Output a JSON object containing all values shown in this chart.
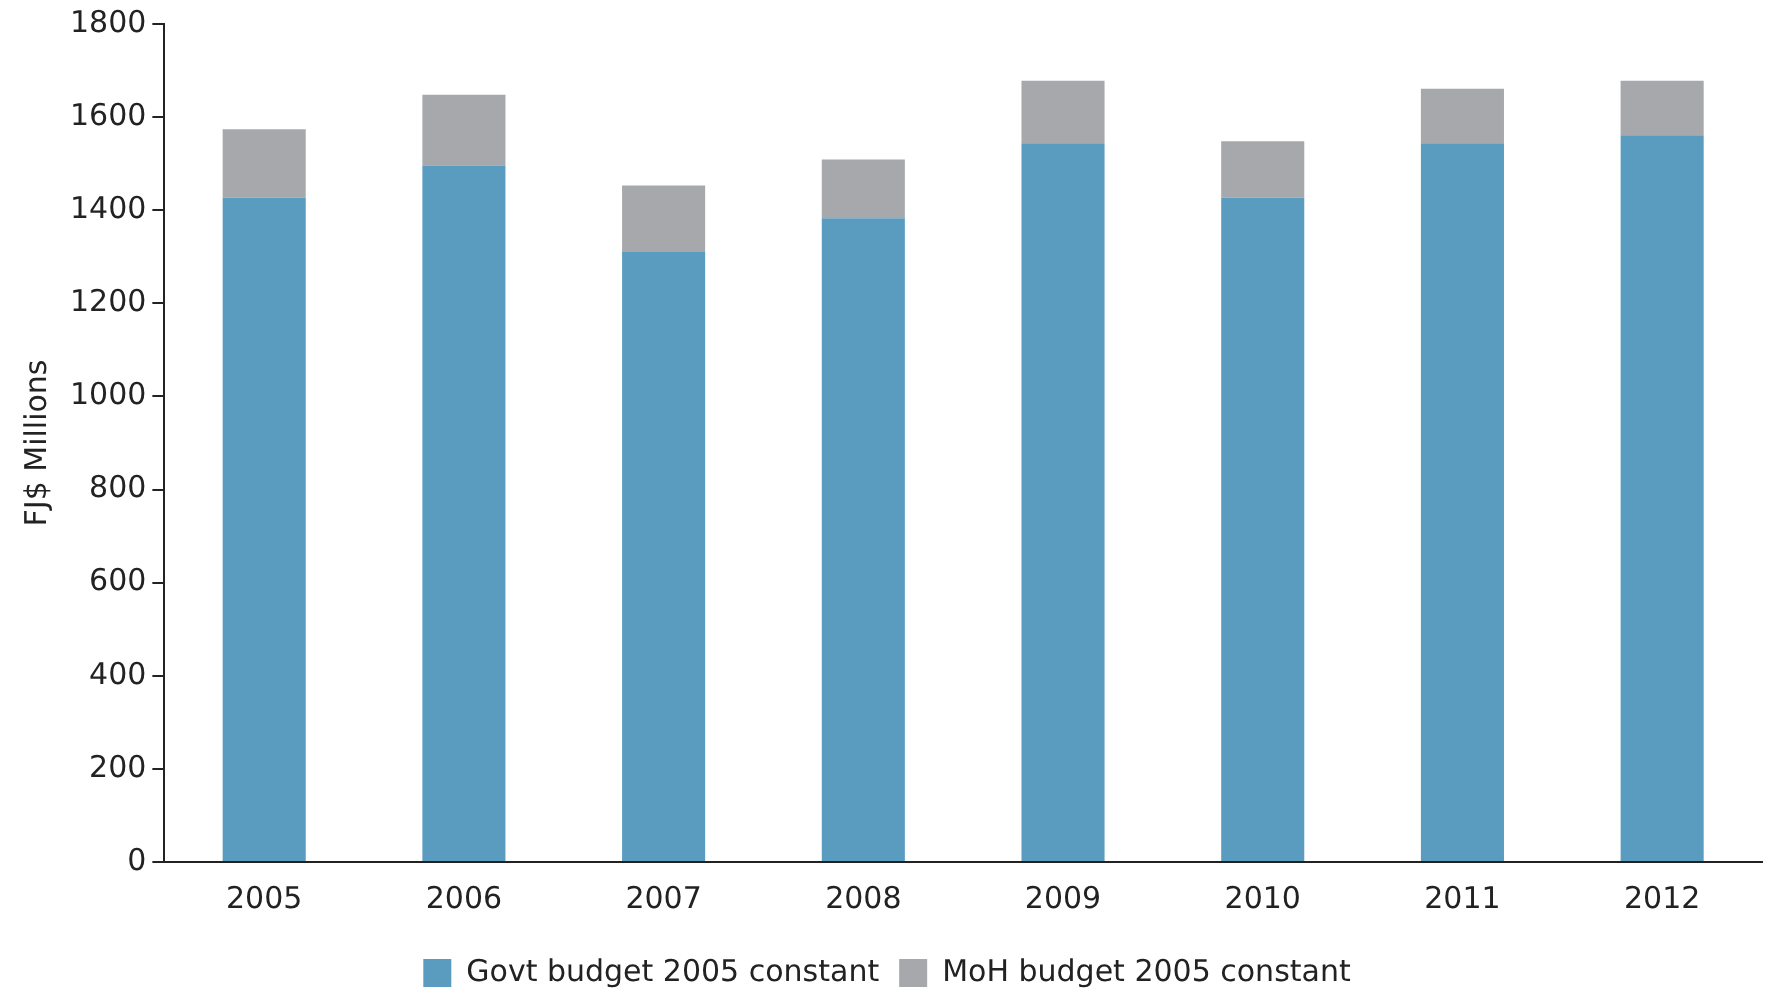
{
  "chart_data": {
    "type": "bar",
    "stacked": true,
    "ylabel": "FJ$ Millions",
    "categories": [
      "2005",
      "2006",
      "2007",
      "2008",
      "2009",
      "2010",
      "2011",
      "2012"
    ],
    "series": [
      {
        "name": "Govt budget 2005 constant",
        "color": "#5a9cbf",
        "values": [
          1427,
          1496,
          1310,
          1383,
          1544,
          1427,
          1544,
          1561
        ]
      },
      {
        "name": "MoH budget 2005 constant",
        "color": "#a7a8ab",
        "values": [
          147,
          152,
          143,
          126,
          134,
          121,
          117,
          117
        ]
      }
    ],
    "ylim": [
      0,
      1800
    ],
    "yticks": [
      0,
      200,
      400,
      600,
      800,
      1000,
      1200,
      1400,
      1600,
      1800
    ],
    "grid": false,
    "legend": "bottom"
  }
}
